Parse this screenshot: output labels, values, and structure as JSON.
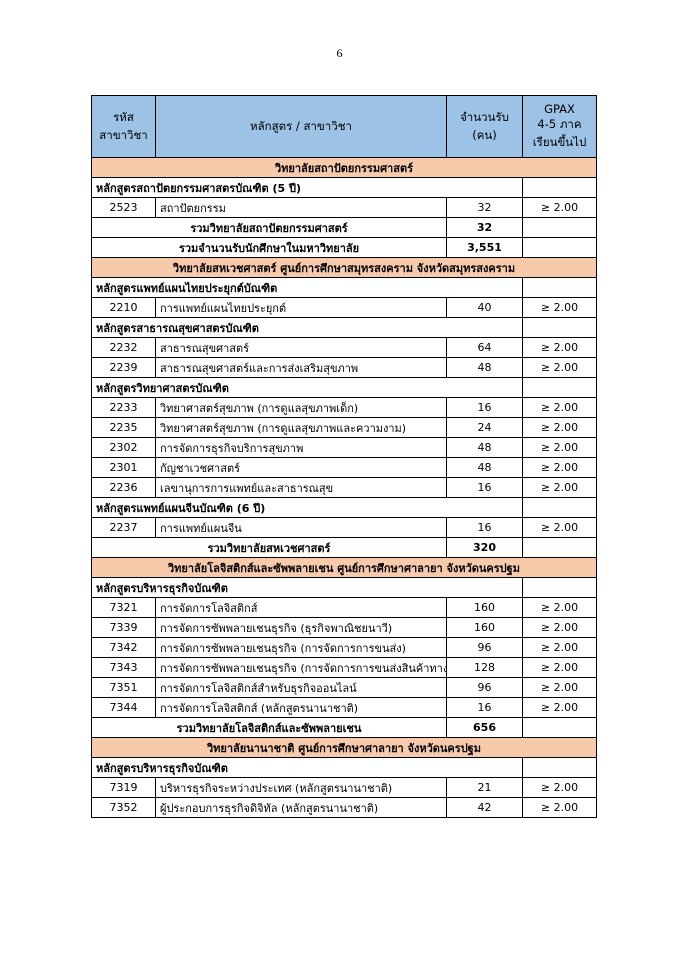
{
  "header": {
    "page_number": "6"
  },
  "table": {
    "columns": [
      "รหัส\nสาขาวิชา",
      "หลักสูตร / สาขาวิชา",
      "จำนวนรับ\n(คน)",
      "GPAX\n4-5 ภาค\nเรียนขึ้นไป"
    ],
    "rows": [
      {
        "type": "section",
        "text": "วิทยาลัยสถาปัตยกรรมศาสตร์"
      },
      {
        "type": "program",
        "text": "หลักสูตรสถาปัตยกรรมศาสตรบัณฑิต (5 ปี)"
      },
      {
        "type": "item",
        "code": "2523",
        "name": "สถาปัตยกรรม",
        "seats": 32,
        "gpax": "≥ 2.00"
      },
      {
        "type": "sum",
        "text": "รวมวิทยาลัยสถาปัตยกรรมศาสตร์",
        "seats": 32
      },
      {
        "type": "sum",
        "text": "รวมจำนวนรับนักศึกษาในมหาวิทยาลัย",
        "seats": "3,551"
      },
      {
        "type": "section",
        "text": "วิทยาลัยสหเวชศาสตร์ ศูนย์การศึกษาสมุทรสงคราม จังหวัดสมุทรสงคราม"
      },
      {
        "type": "program",
        "text": "หลักสูตรแพทย์แผนไทยประยุกต์บัณฑิต"
      },
      {
        "type": "item",
        "code": "2210",
        "name": "การแพทย์แผนไทยประยุกต์",
        "seats": 40,
        "gpax": "≥ 2.00"
      },
      {
        "type": "program",
        "text": "หลักสูตรสาธารณสุขศาสตรบัณฑิต"
      },
      {
        "type": "item",
        "code": "2232",
        "name": "สาธารณสุขศาสตร์",
        "seats": 64,
        "gpax": "≥ 2.00"
      },
      {
        "type": "item",
        "code": "2239",
        "name": "สาธารณสุขศาสตร์และการส่งเสริมสุขภาพ",
        "seats": 48,
        "gpax": "≥ 2.00"
      },
      {
        "type": "program",
        "text": "หลักสูตรวิทยาศาสตรบัณฑิต"
      },
      {
        "type": "item",
        "code": "2233",
        "name": "วิทยาศาสตร์สุขภาพ (การดูแลสุขภาพเด็ก)",
        "seats": 16,
        "gpax": "≥ 2.00"
      },
      {
        "type": "item",
        "code": "2235",
        "name": "วิทยาศาสตร์สุขภาพ (การดูแลสุขภาพและความงาม)",
        "seats": 24,
        "gpax": "≥ 2.00"
      },
      {
        "type": "item",
        "code": "2302",
        "name": "การจัดการธุรกิจบริการสุขภาพ",
        "seats": 48,
        "gpax": "≥ 2.00"
      },
      {
        "type": "item",
        "code": "2301",
        "name": "กัญชาเวชศาสตร์",
        "seats": 48,
        "gpax": "≥ 2.00"
      },
      {
        "type": "item",
        "code": "2236",
        "name": "เลขานุการการแพทย์และสาธารณสุข",
        "seats": 16,
        "gpax": "≥ 2.00"
      },
      {
        "type": "program",
        "text": "หลักสูตรแพทย์แผนจีนบัณฑิต (6 ปี)"
      },
      {
        "type": "item",
        "code": "2237",
        "name": "การแพทย์แผนจีน",
        "seats": 16,
        "gpax": "≥ 2.00"
      },
      {
        "type": "sum",
        "text": "รวมวิทยาลัยสหเวชศาสตร์",
        "seats": 320
      },
      {
        "type": "section",
        "text": "วิทยาลัยโลจิสติกส์และซัพพลายเชน ศูนย์การศึกษาศาลายา จังหวัดนครปฐม"
      },
      {
        "type": "program",
        "text": "หลักสูตรบริหารธุรกิจบัณฑิต"
      },
      {
        "type": "item",
        "code": "7321",
        "name": "การจัดการโลจิสติกส์",
        "seats": 160,
        "gpax": "≥ 2.00"
      },
      {
        "type": "item",
        "code": "7339",
        "name": "การจัดการซัพพลายเชนธุรกิจ (ธุรกิจพาณิชยนาวี)",
        "seats": 160,
        "gpax": "≥ 2.00"
      },
      {
        "type": "item",
        "code": "7342",
        "name": "การจัดการซัพพลายเชนธุรกิจ (การจัดการการขนส่ง)",
        "seats": 96,
        "gpax": "≥ 2.00"
      },
      {
        "type": "item",
        "code": "7343",
        "name": "การจัดการซัพพลายเชนธุรกิจ (การจัดการการขนส่งสินค้าทางอากาศ)",
        "seats": 128,
        "gpax": "≥ 2.00"
      },
      {
        "type": "item",
        "code": "7351",
        "name": "การจัดการโลจิสติกส์สำหรับธุรกิจออนไลน์",
        "seats": 96,
        "gpax": "≥ 2.00"
      },
      {
        "type": "item",
        "code": "7344",
        "name": "การจัดการโลจิสติกส์ (หลักสูตรนานาชาติ)",
        "seats": 16,
        "gpax": "≥ 2.00"
      },
      {
        "type": "sum",
        "text": "รวมวิทยาลัยโลจิสติกส์และซัพพลายเชน",
        "seats": 656
      },
      {
        "type": "section",
        "text": "วิทยาลัยนานาชาติ ศูนย์การศึกษาศาลายา จังหวัดนครปฐม"
      },
      {
        "type": "program",
        "text": "หลักสูตรบริหารธุรกิจบัณฑิต"
      },
      {
        "type": "item",
        "code": "7319",
        "name": "บริหารธุรกิจระหว่างประเทศ (หลักสูตรนานาชาติ)",
        "seats": 21,
        "gpax": "≥ 2.00"
      },
      {
        "type": "item",
        "code": "7352",
        "name": "ผู้ประกอบการธุรกิจดิจิทัล (หลักสูตรนานาชาติ)",
        "seats": 42,
        "gpax": "≥ 2.00"
      }
    ]
  }
}
